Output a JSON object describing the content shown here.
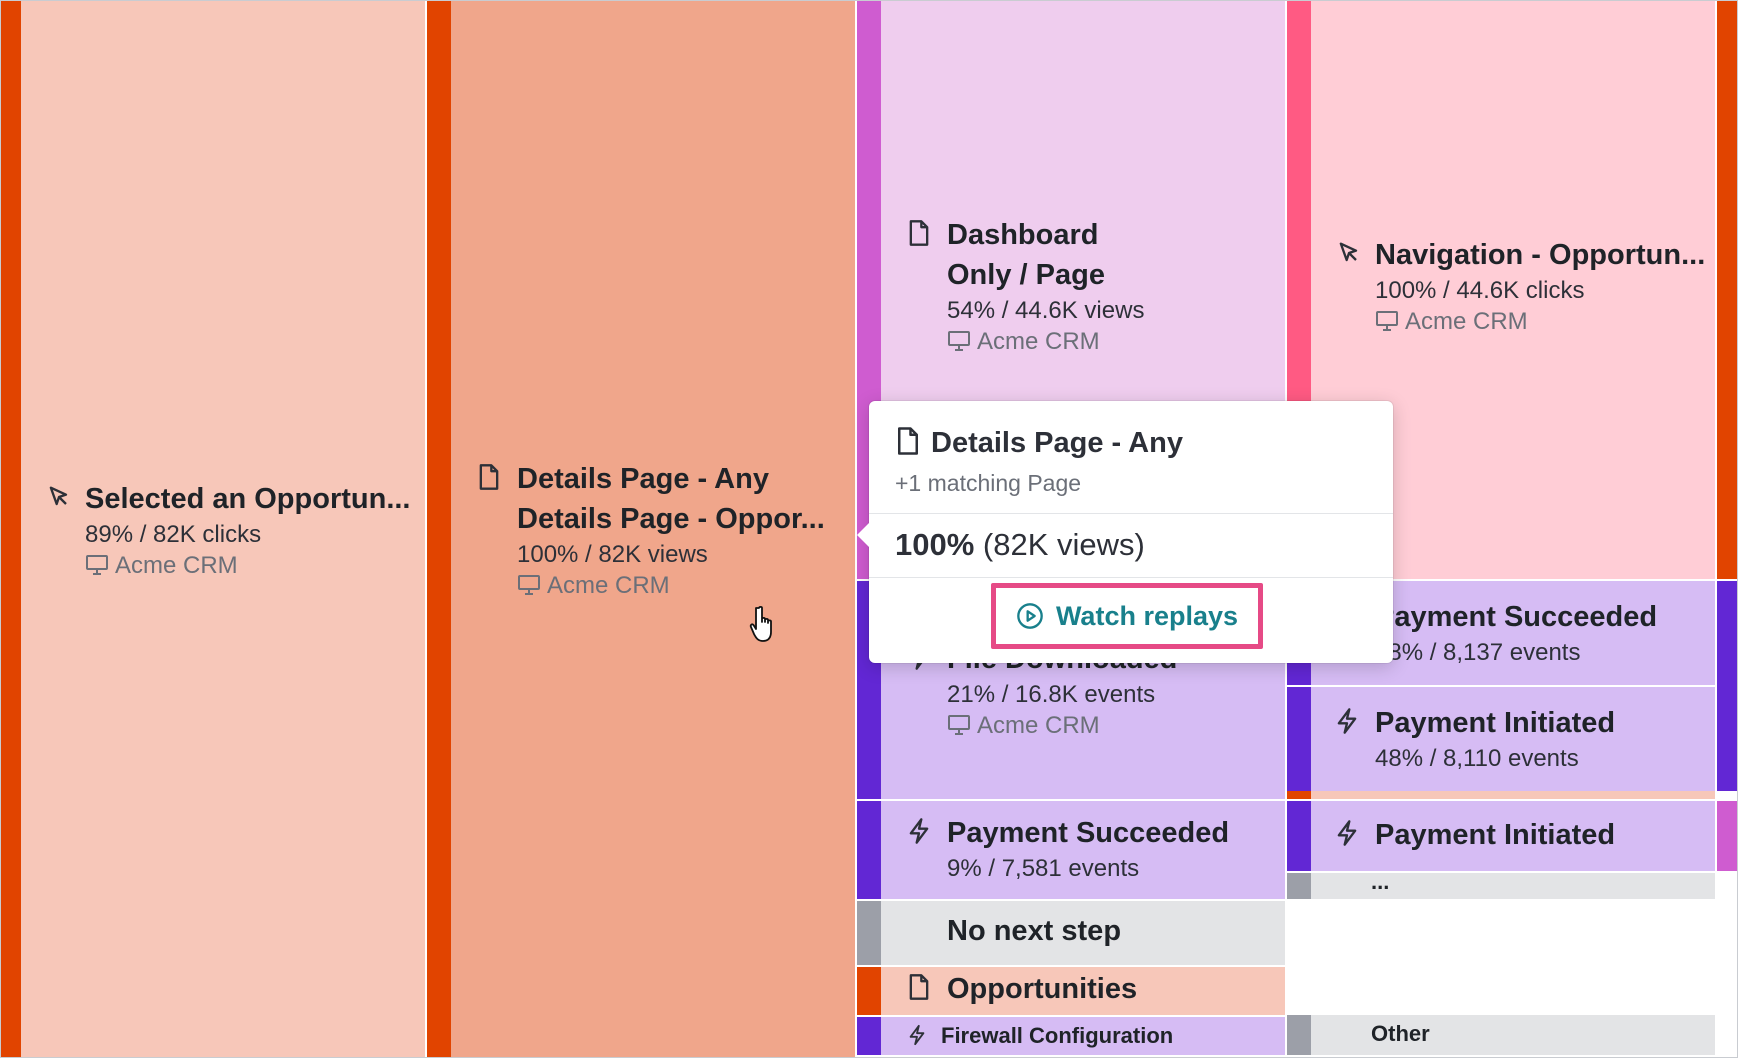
{
  "app_name": "Acme CRM",
  "colors": {
    "orange_bar": "#e14400",
    "light_salmon": "#f7c7b9",
    "salmon": "#f0a68b",
    "lavender": "#efcdee",
    "magenta_bar": "#cf5cd0",
    "pink": "#ffcdd6",
    "pink_bar": "#ff5a83",
    "purple_light": "#d6bcf4",
    "purple_bar": "#6227d4",
    "gray_bg": "#e3e4e6",
    "gray_bar": "#9c9fa8",
    "teal": "#19808c",
    "highlight_border": "#e64a86"
  },
  "nodes": {
    "selected_opportunity": {
      "icon": "cursor-click-icon",
      "title": "Selected an Opportun...",
      "stat": "89% / 82K clicks",
      "app": "Acme CRM"
    },
    "details_page": {
      "icon": "page-icon",
      "title_line1": "Details Page - Any",
      "title_line2": "Details Page - Oppor...",
      "stat": "100% / 82K views",
      "app": "Acme CRM"
    },
    "dashboard_only": {
      "icon": "page-icon",
      "title_line1": "Dashboard",
      "title_line2": "Only / Page",
      "stat": "54% / 44.6K views",
      "app": "Acme CRM"
    },
    "navigation_opportunity": {
      "icon": "cursor-click-icon",
      "title": "Navigation - Opportun...",
      "stat": "100% / 44.6K clicks",
      "app": "Acme CRM"
    },
    "file_downloaded": {
      "icon": "bolt-icon",
      "title": "File Downloaded",
      "stat": "21% / 16.8K events",
      "app": "Acme CRM"
    },
    "payment_succeeded_right": {
      "icon": "bolt-icon",
      "title": "Payment Succeeded",
      "stat": "48% / 8,137 events"
    },
    "payment_initiated_right": {
      "icon": "bolt-icon",
      "title": "Payment Initiated",
      "stat": "48% / 8,110 events"
    },
    "payment_succeeded_mid": {
      "icon": "bolt-icon",
      "title": "Payment Succeeded",
      "stat": "9% / 7,581 events"
    },
    "payment_initiated_right2": {
      "icon": "bolt-icon",
      "title": "Payment Initiated"
    },
    "ellipsis": {
      "label": "..."
    },
    "no_next_step": {
      "title": "No next step"
    },
    "opportunities": {
      "icon": "page-icon",
      "title": "Opportunities"
    },
    "firewall_configuration": {
      "icon": "bolt-icon",
      "title": "Firewall Configuration"
    },
    "other": {
      "title": "Other"
    }
  },
  "tooltip": {
    "icon": "page-icon",
    "title": "Details Page - Any",
    "subtitle": "+1 matching Page",
    "percent": "100%",
    "count": "(82K views)",
    "button_label": "Watch replays",
    "button_icon": "play-circle-icon"
  }
}
